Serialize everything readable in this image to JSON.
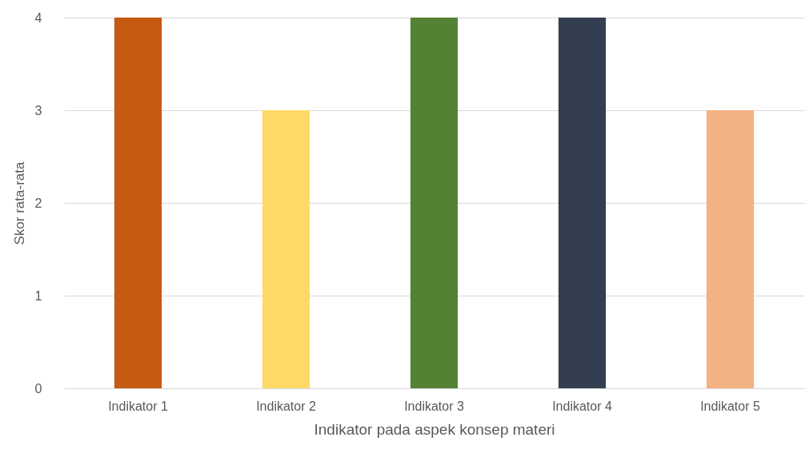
{
  "chart_data": {
    "type": "bar",
    "xlabel": "Indikator pada aspek konsep materi",
    "ylabel": "Skor rata-rata",
    "categories": [
      "Indikator 1",
      "Indikator 2",
      "Indikator 3",
      "Indikator 4",
      "Indikator 5"
    ],
    "values": [
      4,
      3,
      4,
      4,
      3
    ],
    "colors": [
      "#c55a11",
      "#ffd966",
      "#548235",
      "#333f50",
      "#f4b183"
    ],
    "ylim": [
      0,
      4
    ],
    "yticks": [
      0,
      1,
      2,
      3,
      4
    ],
    "grid": "y"
  }
}
